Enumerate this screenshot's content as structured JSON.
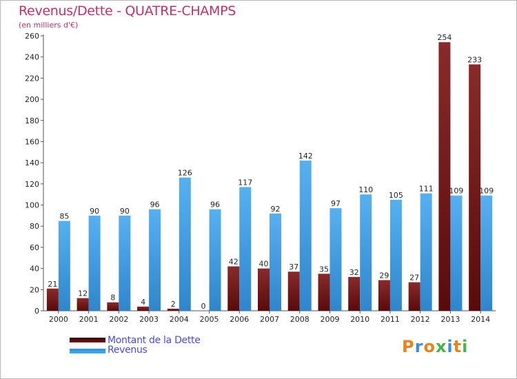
{
  "colors": {
    "dette_top": "#8a2a2a",
    "dette_bottom": "#5a0a0a",
    "revenus_top": "#56b0f0",
    "revenus_bottom": "#2f86cc",
    "title": "#c0306a",
    "legend_text": "#4a4adc"
  },
  "logo": {
    "text": "Proxiti",
    "letter_colors": [
      "#e8821e",
      "#3b8fd6",
      "#e8821e",
      "#4ab24a",
      "#3b8fd6",
      "#e8821e",
      "#4ab24a"
    ]
  },
  "chart_data": {
    "type": "bar",
    "title": "Revenus/Dette - QUATRE-CHAMPS",
    "subtitle": "(en milliers d'€)",
    "xlabel": "",
    "ylabel": "",
    "ylim": [
      0,
      260
    ],
    "yticks": [
      0,
      20,
      40,
      60,
      80,
      100,
      120,
      140,
      160,
      180,
      200,
      220,
      240,
      260
    ],
    "grid": false,
    "legend_position": "bottom-left",
    "categories": [
      "2000",
      "2001",
      "2002",
      "2003",
      "2004",
      "2005",
      "2006",
      "2007",
      "2008",
      "2009",
      "2010",
      "2011",
      "2012",
      "2013",
      "2014"
    ],
    "series": [
      {
        "name": "Montant de la Dette",
        "values": [
          21,
          12,
          8,
          4,
          2,
          0,
          42,
          40,
          37,
          35,
          32,
          29,
          27,
          254,
          233
        ]
      },
      {
        "name": "Revenus",
        "values": [
          85,
          90,
          90,
          96,
          126,
          96,
          117,
          92,
          142,
          97,
          110,
          105,
          111,
          109,
          109
        ]
      }
    ]
  }
}
